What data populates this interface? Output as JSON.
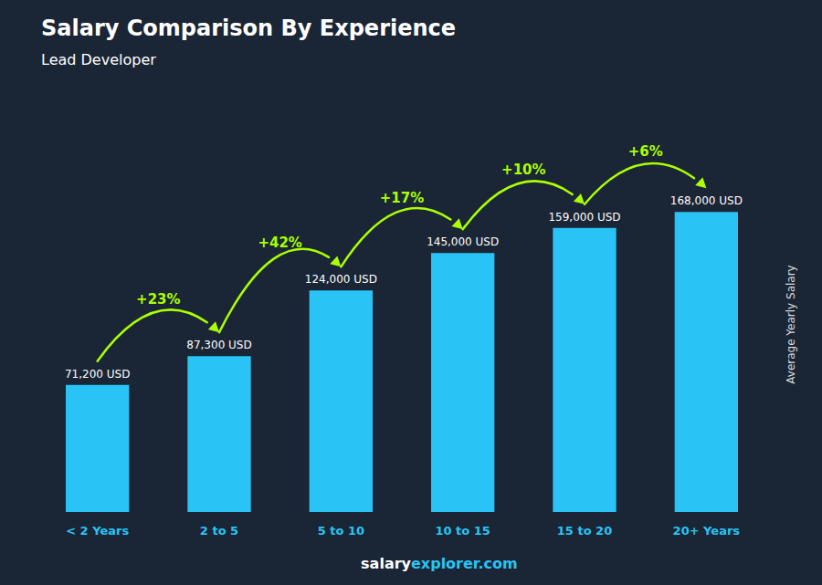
{
  "chart_data": {
    "type": "bar",
    "title": "Salary Comparison By Experience",
    "subtitle": "Lead Developer",
    "ylabel": "Average Yearly Salary",
    "categories": [
      "< 2 Years",
      "2 to 5",
      "5 to 10",
      "10 to 15",
      "15 to 20",
      "20+ Years"
    ],
    "values": [
      71200,
      87300,
      124000,
      145000,
      159000,
      168000
    ],
    "value_labels": [
      "71,200 USD",
      "87,300 USD",
      "124,000 USD",
      "145,000 USD",
      "159,000 USD",
      "168,000 USD"
    ],
    "annotations": [
      "+23%",
      "+42%",
      "+17%",
      "+10%",
      "+6%"
    ],
    "footer": [
      "salary",
      "explorer.com"
    ],
    "color": "#29c4f5",
    "ylim": [
      0,
      210000
    ],
    "grid": false,
    "data_labels": true,
    "tick_labels": "x"
  }
}
